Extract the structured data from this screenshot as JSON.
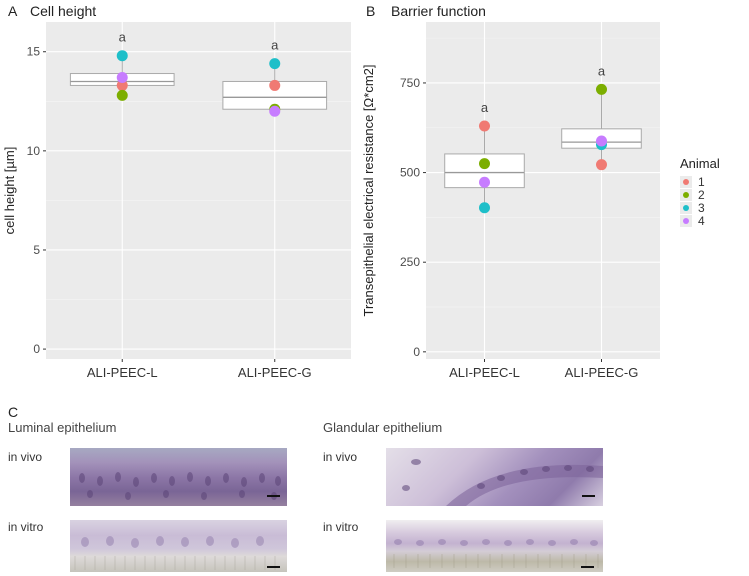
{
  "panels": {
    "a": {
      "letter": "A"
    },
    "b": {
      "letter": "B"
    },
    "c": {
      "letter": "C"
    }
  },
  "legend": {
    "title": "Animal",
    "entries": [
      "1",
      "2",
      "3",
      "4"
    ]
  },
  "colors": {
    "animal_1": "#F07A73",
    "animal_2": "#7CAE00",
    "animal_3": "#1EBFC9",
    "animal_4": "#C77CFF",
    "panel_bg": "#EBEBEB",
    "grid": "#FFFFFF"
  },
  "chart_data": [
    {
      "type": "boxplot",
      "title": "Cell height",
      "ylabel": "cell height [µm]",
      "xlabel": "",
      "categories": [
        "ALI-PEEC-L",
        "ALI-PEEC-G"
      ],
      "ylim": [
        -0.5,
        16.5
      ],
      "yticks": [
        0,
        5,
        10,
        15
      ],
      "grid": true,
      "significance_letters": [
        "a",
        "a"
      ],
      "boxes": [
        {
          "q1": 13.3,
          "median": 13.5,
          "q3": 13.9,
          "min": 12.8,
          "max": 14.8
        },
        {
          "q1": 12.1,
          "median": 12.7,
          "q3": 13.5,
          "min": 12.0,
          "max": 14.4
        }
      ],
      "series": [
        {
          "name": "1",
          "values": [
            13.3,
            13.3
          ]
        },
        {
          "name": "2",
          "values": [
            12.8,
            12.1
          ]
        },
        {
          "name": "3",
          "values": [
            14.8,
            14.4
          ]
        },
        {
          "name": "4",
          "values": [
            13.7,
            12.0
          ]
        }
      ]
    },
    {
      "type": "boxplot",
      "title": "Barrier function",
      "ylabel": "Transepithelial electrical resistance [Ω*cm2]",
      "xlabel": "",
      "categories": [
        "ALI-PEEC-L",
        "ALI-PEEC-G"
      ],
      "ylim": [
        -20,
        920
      ],
      "yticks": [
        0,
        250,
        500,
        750
      ],
      "grid": true,
      "significance_letters": [
        "a",
        "a"
      ],
      "boxes": [
        {
          "q1": 458,
          "median": 500,
          "q3": 552,
          "min": 402,
          "max": 630
        },
        {
          "q1": 568,
          "median": 585,
          "q3": 622,
          "min": 522,
          "max": 732
        }
      ],
      "series": [
        {
          "name": "1",
          "values": [
            630,
            522
          ]
        },
        {
          "name": "2",
          "values": [
            525,
            732
          ]
        },
        {
          "name": "3",
          "values": [
            402,
            578
          ]
        },
        {
          "name": "4",
          "values": [
            473,
            588
          ]
        }
      ]
    }
  ],
  "micrographs": {
    "luminal": {
      "title": "Luminal epithelium",
      "in_vivo": "in vivo",
      "in_vitro": "in vitro"
    },
    "glandular": {
      "title": "Glandular epithelium",
      "in_vivo": "in vivo",
      "in_vitro": "in vitro"
    }
  }
}
